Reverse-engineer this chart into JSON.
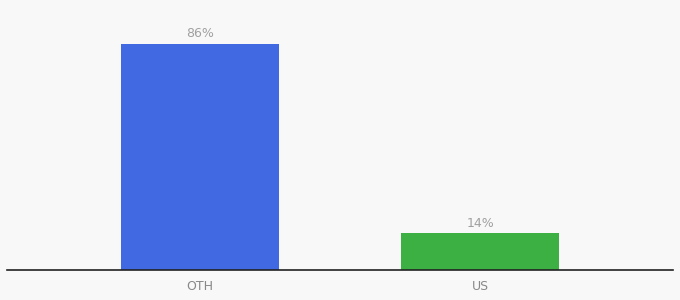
{
  "categories": [
    "OTH",
    "US"
  ],
  "values": [
    86,
    14
  ],
  "bar_colors": [
    "#4169E1",
    "#3CB043"
  ],
  "label_color": "#a0a0a0",
  "value_labels": [
    "86%",
    "14%"
  ],
  "ylim": [
    0,
    100
  ],
  "background_color": "#f8f8f8",
  "label_fontsize": 9,
  "tick_fontsize": 9,
  "bar_width": 0.18,
  "x_positions": [
    0.3,
    0.62
  ],
  "xlim": [
    0.08,
    0.84
  ]
}
